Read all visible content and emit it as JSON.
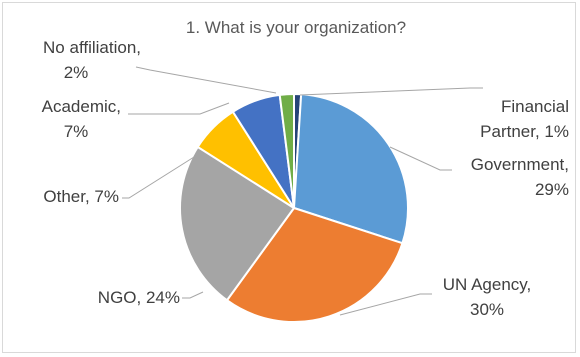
{
  "chart_data": {
    "type": "pie",
    "title": "1. What is your organization?",
    "start_angle_deg": 0,
    "direction": "clockwise",
    "slices": [
      {
        "label": "Financial Partner",
        "value": 1,
        "display": "1%",
        "color": "#264478"
      },
      {
        "label": "Government",
        "value": 29,
        "display": "29%",
        "color": "#5b9bd5"
      },
      {
        "label": "UN Agency",
        "value": 30,
        "display": "30%",
        "color": "#ed7d31"
      },
      {
        "label": "NGO",
        "value": 24,
        "display": "24%",
        "color": "#a5a5a5"
      },
      {
        "label": "Other",
        "value": 7,
        "display": "7%",
        "color": "#ffc000"
      },
      {
        "label": "Academic",
        "value": 7,
        "display": "7%",
        "color": "#4472c4"
      },
      {
        "label": "No affiliation",
        "value": 2,
        "display": "2%",
        "color": "#70ad47"
      }
    ],
    "data_labels": "outside-with-leader-lines",
    "legend": "none"
  }
}
